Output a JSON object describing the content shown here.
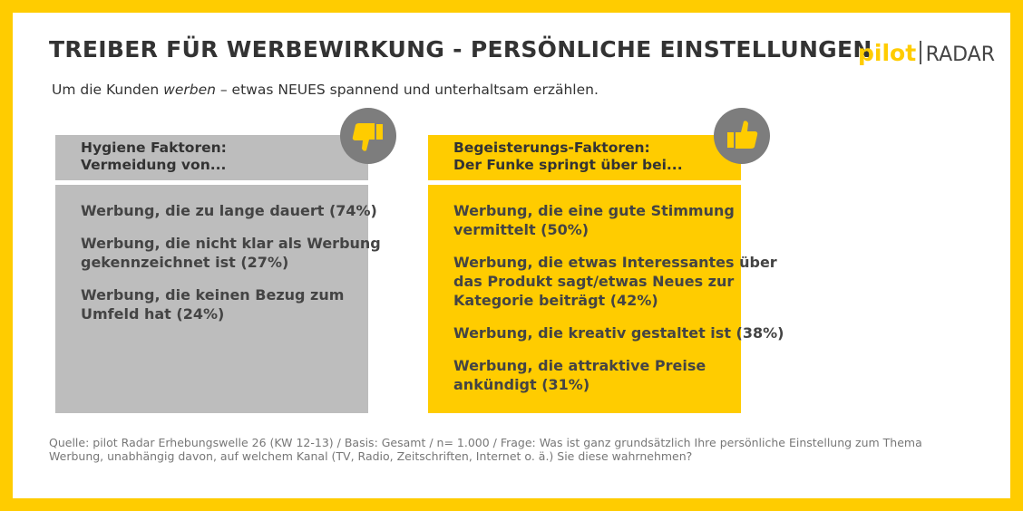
{
  "header": {
    "title": "TREIBER FÜR WERBEWIRKUNG - PERSÖNLICHE EINSTELLUNGEN",
    "subtitle": {
      "before": "Um die Kunden ",
      "emphasis": "werben",
      "after": " – etwas NEUES spannend und unterhaltsam erzählen."
    },
    "logo": {
      "brand": "pilot",
      "product": "RADAR"
    }
  },
  "panels": [
    {
      "heading": [
        "Hygiene Faktoren:",
        "Vermeidung von..."
      ],
      "items": [
        [
          "Werbung, die zu lange dauert (74%)"
        ],
        [
          "Werbung, die nicht klar als Werbung",
          "gekennzeichnet ist (27%)"
        ],
        [
          "Werbung, die keinen Bezug zum",
          "Umfeld hat (24%)"
        ]
      ]
    },
    {
      "heading": [
        "Begeisterungs-Faktoren:",
        "Der Funke springt über bei..."
      ],
      "items": [
        [
          "Werbung, die eine gute Stimmung",
          "vermittelt (50%)"
        ],
        [
          "Werbung, die etwas Interessantes über",
          "das Produkt sagt/etwas Neues zur",
          "Kategorie beiträgt (42%)"
        ],
        [
          "Werbung, die kreativ gestaltet ist (38%)"
        ],
        [
          "Werbung, die attraktive Preise",
          "ankündigt (31%)"
        ]
      ]
    }
  ],
  "source": [
    "Quelle: pilot Radar Erhebungswelle 26 (KW 12-13) / Basis: Gesamt / n= 1.000 / Frage: Was ist ganz grundsätzlich Ihre persönliche Einstellung zum Thema",
    "Werbung, unabhängig davon, auf welchem Kanal (TV, Radio, Zeitschriften, Internet o. ä.) Sie diese wahrnehmen?"
  ]
}
